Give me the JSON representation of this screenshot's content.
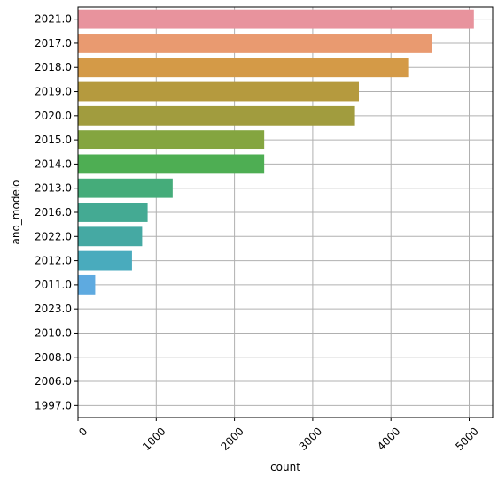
{
  "chart_data": {
    "type": "bar",
    "orientation": "horizontal",
    "xlabel": "count",
    "ylabel": "ano_modelo",
    "xlim": [
      0,
      5300
    ],
    "xticks": [
      0,
      1000,
      2000,
      3000,
      4000,
      5000
    ],
    "grid": true,
    "categories": [
      "2021.0",
      "2017.0",
      "2018.0",
      "2019.0",
      "2020.0",
      "2015.0",
      "2014.0",
      "2013.0",
      "2016.0",
      "2022.0",
      "2012.0",
      "2011.0",
      "2023.0",
      "2010.0",
      "2008.0",
      "2006.0",
      "1997.0"
    ],
    "values": [
      5060,
      4520,
      4220,
      3590,
      3540,
      2380,
      2380,
      1210,
      890,
      820,
      690,
      220,
      3,
      2,
      1,
      1,
      1
    ],
    "colors": [
      "#e8939d",
      "#e99a70",
      "#d49a47",
      "#b59a3e",
      "#a19c3e",
      "#84a540",
      "#4eae53",
      "#45ac7a",
      "#44aa93",
      "#45a9a3",
      "#49abbd",
      "#5eaae0",
      "#8fa7ea",
      "#b59ee8",
      "#d693e3",
      "#e88cce",
      "#ea8eb2"
    ]
  }
}
